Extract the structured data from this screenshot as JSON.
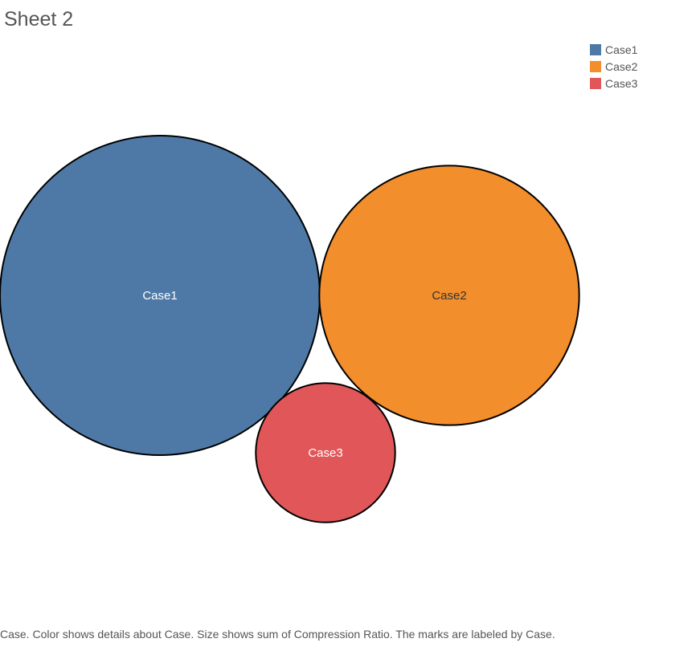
{
  "sheet": {
    "title": "Sheet 2",
    "caption": "Case.  Color shows details about Case.  Size shows sum of Compression Ratio.  The marks are labeled by Case."
  },
  "legend": {
    "placement": "top-right",
    "items": [
      {
        "label": "Case1",
        "color": "#4e79a7"
      },
      {
        "label": "Case2",
        "color": "#f28e2b"
      },
      {
        "label": "Case3",
        "color": "#e15759"
      }
    ]
  },
  "chart_data": {
    "type": "bubble",
    "title": "Sheet 2",
    "size_measure": "Compression Ratio",
    "categories": [
      "Case1",
      "Case2",
      "Case3"
    ],
    "values": [
      100,
      66,
      19
    ],
    "colors": [
      "#4e79a7",
      "#f28e2b",
      "#e15759"
    ],
    "label_colors": [
      "#ffffff",
      "#333333",
      "#ffffff"
    ],
    "value_note": "relative sizes estimated from circle areas; no numeric labels shown"
  }
}
